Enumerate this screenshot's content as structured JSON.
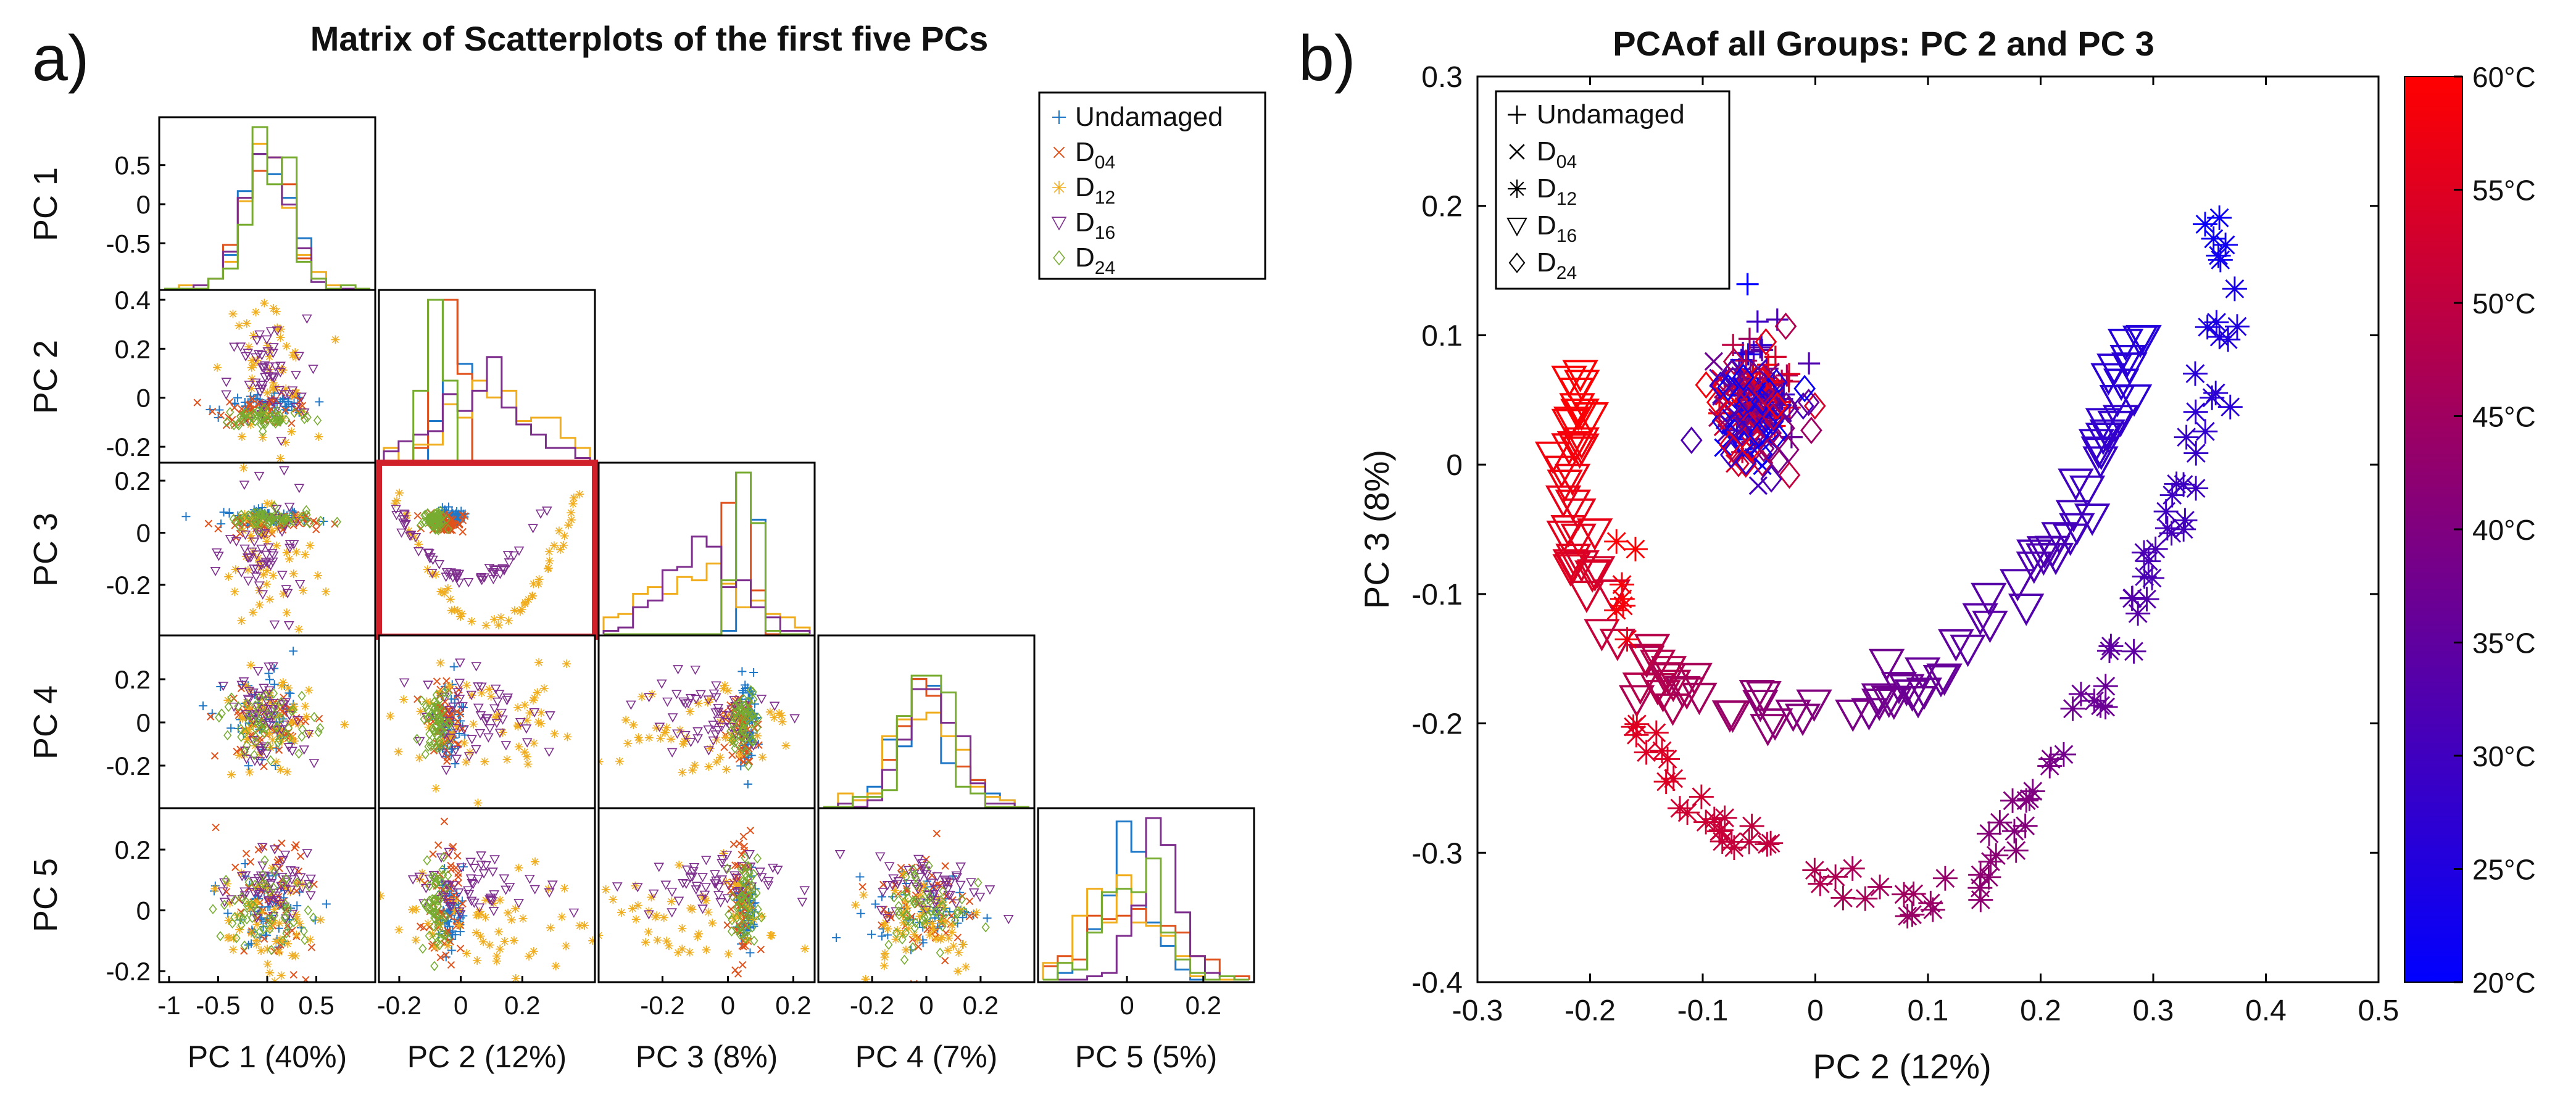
{
  "panels": {
    "a_label": "a)",
    "b_label": "b)"
  },
  "chart_data": [
    {
      "type": "scatter",
      "name": "scatterplot-matrix",
      "title": "Matrix of Scatterplots of the first five PCs",
      "variables": [
        "PC 1",
        "PC 2",
        "PC 3",
        "PC 4",
        "PC 5"
      ],
      "xlabels": [
        "PC 1 (40%)",
        "PC 2 (12%)",
        "PC 3 (8%)",
        "PC 4 (7%)",
        "PC 5 (5%)"
      ],
      "ylabels": [
        "PC 1",
        "PC 2",
        "PC 3",
        "PC 4",
        "PC 5"
      ],
      "ranges": [
        [
          -1.05,
          1.05
        ],
        [
          -0.25,
          0.42
        ],
        [
          -0.38,
          0.25
        ],
        [
          -0.38,
          0.38
        ],
        [
          -0.22,
          0.32
        ]
      ],
      "x_ticks": [
        [
          "-1",
          "-0.5",
          "0",
          "0.5"
        ],
        [
          "-0.2",
          "0",
          "0.2"
        ],
        [
          "-0.2",
          "0",
          "0.2"
        ],
        [
          "-0.2",
          "0",
          "0.2"
        ],
        [
          "0",
          "0.2"
        ]
      ],
      "x_tick_values": [
        [
          -1,
          -0.5,
          0,
          0.5
        ],
        [
          -0.2,
          0,
          0.2
        ],
        [
          -0.2,
          0,
          0.2
        ],
        [
          -0.2,
          0,
          0.2
        ],
        [
          0,
          0.2
        ]
      ],
      "y_ticks": [
        [
          "0.5",
          "0",
          "-0.5"
        ],
        [
          "0.4",
          "0.2",
          "0",
          "-0.2"
        ],
        [
          "0.2",
          "0",
          "-0.2"
        ],
        [
          "0.2",
          "0",
          "-0.2"
        ],
        [
          "0.2",
          "0",
          "-0.2"
        ]
      ],
      "y_tick_values": [
        [
          0.5,
          0,
          -0.5
        ],
        [
          0.4,
          0.2,
          0,
          -0.2
        ],
        [
          0.2,
          0,
          -0.2
        ],
        [
          0.2,
          0,
          -0.2
        ],
        [
          0.2,
          0,
          -0.2
        ]
      ],
      "highlighted_cell": {
        "row": "PC 3",
        "col": "PC 2",
        "color": "#d0202a"
      },
      "legend": {
        "location": "top-right",
        "entries": [
          {
            "label": "Undamaged",
            "sub": "",
            "marker": "+",
            "color": "#1f77c8"
          },
          {
            "label": "D",
            "sub": "04",
            "marker": "x",
            "color": "#e0521c"
          },
          {
            "label": "D",
            "sub": "12",
            "marker": "star",
            "color": "#f0ad1e"
          },
          {
            "label": "D",
            "sub": "16",
            "marker": "triangle-down",
            "color": "#7e2f8e"
          },
          {
            "label": "D",
            "sub": "24",
            "marker": "diamond",
            "color": "#77ac30"
          }
        ]
      },
      "series": [
        {
          "name": "Undamaged",
          "color": "#1f77c8",
          "mean": [
            0.0,
            -0.03,
            0.06,
            0.0,
            0.0
          ],
          "sd": [
            0.22,
            0.02,
            0.015,
            0.1,
            0.06
          ]
        },
        {
          "name": "D04",
          "color": "#e0521c",
          "mean": [
            0.0,
            -0.05,
            0.04,
            0.0,
            0.02
          ],
          "sd": [
            0.25,
            0.03,
            0.02,
            0.09,
            0.11
          ]
        },
        {
          "name": "D12",
          "color": "#f0ad1e",
          "mean": [
            0.0,
            0.11,
            -0.11,
            -0.02,
            -0.03
          ],
          "sd": [
            0.22,
            0.16,
            0.16,
            0.12,
            0.09
          ]
        },
        {
          "name": "D16",
          "color": "#7e2f8e",
          "mean": [
            0.0,
            0.06,
            -0.08,
            0.02,
            0.08
          ],
          "sd": [
            0.2,
            0.13,
            0.11,
            0.1,
            0.05
          ]
        },
        {
          "name": "D24",
          "color": "#77ac30",
          "mean": [
            0.0,
            -0.08,
            0.05,
            0.0,
            0.01
          ],
          "sd": [
            0.24,
            0.02,
            0.02,
            0.08,
            0.08
          ]
        }
      ]
    },
    {
      "type": "scatter",
      "name": "pca-pc2-pc3",
      "title": "PCAof all Groups: PC 2 and PC 3",
      "xlabel": "PC 2 (12%)",
      "ylabel": "PC 3 (8%)",
      "xlim": [
        -0.3,
        0.5
      ],
      "ylim": [
        -0.4,
        0.3
      ],
      "x_ticks": [
        "-0.3",
        "-0.2",
        "-0.1",
        "0",
        "0.1",
        "0.2",
        "0.3",
        "0.4",
        "0.5"
      ],
      "x_tick_values": [
        -0.3,
        -0.2,
        -0.1,
        0,
        0.1,
        0.2,
        0.3,
        0.4,
        0.5
      ],
      "y_ticks": [
        "0.3",
        "0.2",
        "0.1",
        "0",
        "-0.1",
        "-0.2",
        "-0.3",
        "-0.4"
      ],
      "y_tick_values": [
        0.3,
        0.2,
        0.1,
        0,
        -0.1,
        -0.2,
        -0.3,
        -0.4
      ],
      "colorbar": {
        "range": [
          20,
          60
        ],
        "low_color": "#0000ff",
        "high_color": "#ff0000",
        "ticks": [
          "60°C",
          "55°C",
          "50°C",
          "45°C",
          "40°C",
          "35°C",
          "30°C",
          "25°C",
          "20°C"
        ],
        "tick_values": [
          60,
          55,
          50,
          45,
          40,
          35,
          30,
          25,
          20
        ]
      },
      "legend": {
        "location": "top-left",
        "entries": [
          {
            "label": "Undamaged",
            "sub": "",
            "marker": "+"
          },
          {
            "label": "D",
            "sub": "04",
            "marker": "x"
          },
          {
            "label": "D",
            "sub": "12",
            "marker": "star"
          },
          {
            "label": "D",
            "sub": "16",
            "marker": "triangle-down"
          },
          {
            "label": "D",
            "sub": "24",
            "marker": "diamond"
          }
        ]
      },
      "series": [
        {
          "name": "D16",
          "marker": "triangle-down",
          "path": [
            [
              -0.21,
              0.07,
              60
            ],
            [
              -0.22,
              0.0,
              58
            ],
            [
              -0.21,
              -0.07,
              55
            ],
            [
              -0.17,
              -0.14,
              50
            ],
            [
              -0.1,
              -0.19,
              45
            ],
            [
              0.0,
              -0.2,
              40
            ],
            [
              0.1,
              -0.17,
              36
            ],
            [
              0.18,
              -0.1,
              33
            ],
            [
              0.24,
              -0.03,
              30
            ],
            [
              0.27,
              0.05,
              27
            ],
            [
              0.29,
              0.12,
              25
            ]
          ]
        },
        {
          "name": "D12",
          "marker": "star",
          "path": [
            [
              -0.18,
              -0.05,
              60
            ],
            [
              -0.17,
              -0.12,
              58
            ],
            [
              -0.15,
              -0.21,
              55
            ],
            [
              -0.1,
              -0.27,
              52
            ],
            [
              -0.03,
              -0.31,
              49
            ],
            [
              0.04,
              -0.33,
              46
            ],
            [
              0.1,
              -0.34,
              44
            ],
            [
              0.15,
              -0.31,
              42
            ],
            [
              0.19,
              -0.25,
              40
            ],
            [
              0.24,
              -0.19,
              37
            ],
            [
              0.28,
              -0.12,
              34
            ],
            [
              0.31,
              -0.06,
              31
            ],
            [
              0.33,
              0.0,
              29
            ],
            [
              0.36,
              0.07,
              26
            ],
            [
              0.37,
              0.15,
              23
            ],
            [
              0.35,
              0.2,
              21
            ]
          ]
        },
        {
          "name": "Undamaged",
          "marker": "+",
          "cluster": [
            -0.05,
            0.06,
            0.03,
            0.035
          ]
        },
        {
          "name": "D04",
          "marker": "x",
          "cluster": [
            -0.06,
            0.04,
            0.025,
            0.03
          ]
        },
        {
          "name": "D24",
          "marker": "diamond",
          "cluster": [
            -0.05,
            0.04,
            0.035,
            0.04
          ]
        }
      ]
    }
  ]
}
